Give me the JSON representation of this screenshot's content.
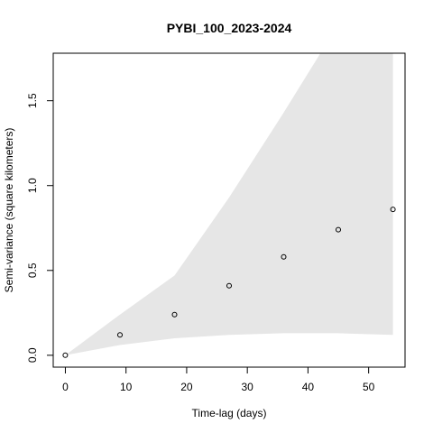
{
  "chart_data": {
    "type": "scatter",
    "title": "PYBI_100_2023-2024",
    "xlabel": "Time-lag (days)",
    "ylabel": "Semi-variance (square kilometers)",
    "xlim": [
      -2,
      56
    ],
    "ylim": [
      -0.07,
      1.78
    ],
    "x_ticks": [
      0,
      10,
      20,
      30,
      40,
      50
    ],
    "x_tick_labels": [
      "0",
      "10",
      "20",
      "30",
      "40",
      "50"
    ],
    "y_ticks": [
      0.0,
      0.5,
      1.0,
      1.5
    ],
    "y_tick_labels": [
      "0.0",
      "0.5",
      "1.0",
      "1.5"
    ],
    "grid": false,
    "series": [
      {
        "type": "scatter",
        "x": [
          0,
          9,
          18,
          27,
          36,
          45,
          54
        ],
        "y": [
          0.0,
          0.12,
          0.24,
          0.41,
          0.58,
          0.74,
          0.86
        ]
      }
    ],
    "envelope": {
      "x": [
        0,
        9,
        18,
        27,
        36,
        45,
        54
      ],
      "upper": [
        0.0,
        0.24,
        0.47,
        0.93,
        1.43,
        1.95,
        2.3
      ],
      "lower": [
        0.0,
        0.06,
        0.1,
        0.12,
        0.13,
        0.13,
        0.12
      ],
      "color": "#e6e6e6"
    }
  }
}
